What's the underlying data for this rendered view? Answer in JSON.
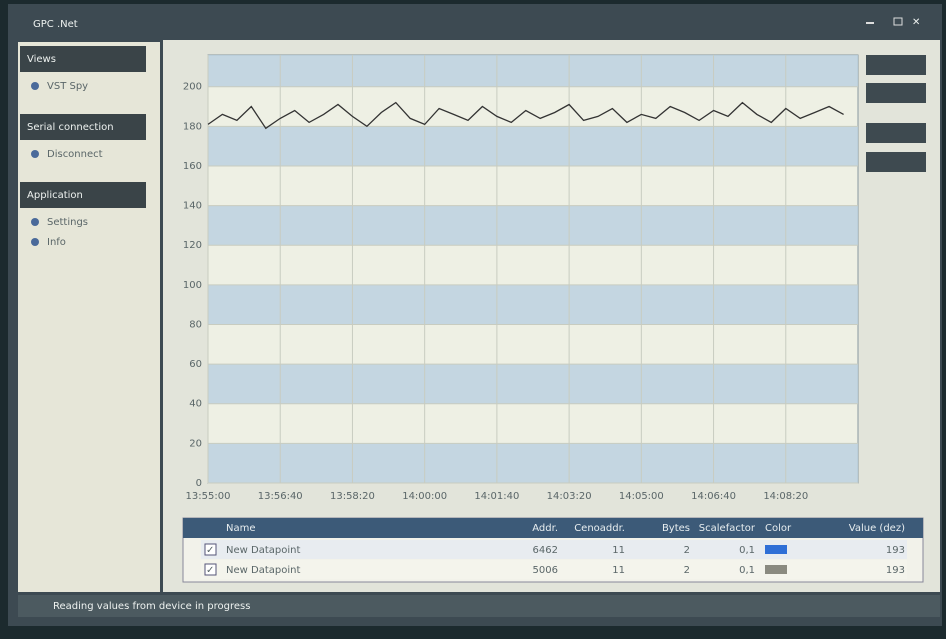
{
  "window": {
    "title": "GPC .Net"
  },
  "sidebar": [
    {
      "title": "Views",
      "items": [
        "VST Spy"
      ]
    },
    {
      "title": "Serial connection",
      "items": [
        "Disconnect"
      ]
    },
    {
      "title": "Application",
      "items": [
        "Settings",
        "Info"
      ]
    }
  ],
  "chart_data": {
    "type": "line",
    "x": [
      "13:55:00",
      "13:55:20",
      "13:55:40",
      "13:56:00",
      "13:56:20",
      "13:56:40",
      "13:57:00",
      "13:57:20",
      "13:57:40",
      "13:58:00",
      "13:58:20",
      "13:58:40",
      "13:59:00",
      "13:59:20",
      "13:59:40",
      "14:00:00",
      "14:00:20",
      "14:00:40",
      "14:01:00",
      "14:01:20",
      "14:01:40",
      "14:02:00",
      "14:02:20",
      "14:02:40",
      "14:03:00",
      "14:03:20",
      "14:03:40",
      "14:04:00",
      "14:04:20",
      "14:04:40",
      "14:05:00",
      "14:05:20",
      "14:05:40",
      "14:06:00",
      "14:06:20",
      "14:06:40",
      "14:07:00",
      "14:07:20",
      "14:07:40",
      "14:08:00",
      "14:08:20",
      "14:08:40",
      "14:09:00",
      "14:09:20",
      "14:09:40"
    ],
    "series": [
      {
        "name": "New Datapoint",
        "color": "#333333",
        "values": [
          181,
          186,
          183,
          190,
          179,
          184,
          188,
          182,
          186,
          191,
          185,
          180,
          187,
          192,
          184,
          181,
          189,
          186,
          183,
          190,
          185,
          182,
          188,
          184,
          187,
          191,
          183,
          185,
          189,
          182,
          186,
          184,
          190,
          187,
          183,
          188,
          185,
          192,
          186,
          182,
          189,
          184,
          187,
          190,
          186
        ]
      }
    ],
    "xlim": [
      "13:55:00",
      "14:10:00"
    ],
    "xticks": [
      "13:55:00",
      "13:56:40",
      "13:58:20",
      "14:00:00",
      "14:01:40",
      "14:03:20",
      "14:05:00",
      "14:06:40",
      "14:08:20"
    ],
    "ylim": [
      0,
      216
    ],
    "yticks": [
      0,
      20,
      40,
      60,
      80,
      100,
      120,
      140,
      160,
      180,
      200
    ]
  },
  "table": {
    "columns": [
      "Name",
      "Addr.",
      "Cenoaddr.",
      "Bytes",
      "Scalefactor",
      "Color",
      "Value (dez)"
    ],
    "rows": [
      {
        "name": "New Datapoint",
        "addr": "6462",
        "cenoaddr": "11",
        "bytes": "2",
        "scalefactor": "0,1",
        "color": "#2f6fd6",
        "value": "193"
      },
      {
        "name": "New Datapoint",
        "addr": "5006",
        "cenoaddr": "11",
        "bytes": "2",
        "scalefactor": "0,1",
        "color": "#8a8a80",
        "value": "193"
      }
    ]
  },
  "status": "Reading values from device in progress"
}
